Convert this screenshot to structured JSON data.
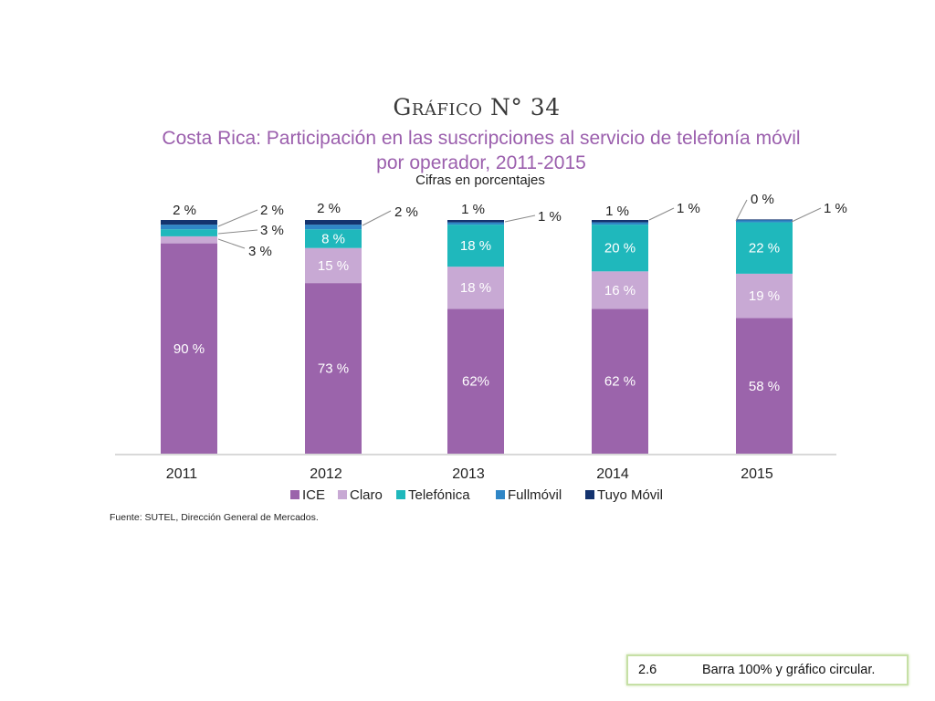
{
  "header": {
    "title": "Gráfico N° 34",
    "subtitle_line1": "Costa Rica: Participación en las suscripciones al servicio de telefonía móvil",
    "subtitle_line2": "por operador, 2011-2015",
    "units": "Cifras en porcentajes"
  },
  "source": "Fuente: SUTEL, Dirección General de Mercados.",
  "note": {
    "number": "2.6",
    "text": "Barra 100% y gráfico circular."
  },
  "colors": {
    "ICE": "#9b64ab",
    "Claro": "#c8a9d4",
    "Telefónica": "#1fb8bc",
    "Fullmóvil": "#2f86c6",
    "Tuyo Móvil": "#14336e",
    "note_border": "#c6e0a6"
  },
  "chart_data": {
    "type": "bar",
    "stacked": true,
    "categories": [
      "2011",
      "2012",
      "2013",
      "2014",
      "2015"
    ],
    "series": [
      {
        "name": "ICE",
        "values": [
          90,
          73,
          62,
          62,
          58
        ],
        "labels": [
          "90 %",
          "73 %",
          "62%",
          "62 %",
          "58 %"
        ]
      },
      {
        "name": "Claro",
        "values": [
          3,
          15,
          18,
          16,
          19
        ],
        "labels": [
          "3 %",
          "15 %",
          "18 %",
          "16 %",
          "19 %"
        ]
      },
      {
        "name": "Telefónica",
        "values": [
          3,
          8,
          18,
          20,
          22
        ],
        "labels": [
          "3 %",
          "8 %",
          "18 %",
          "20 %",
          "22 %"
        ]
      },
      {
        "name": "Fullmóvil",
        "values": [
          2,
          2,
          1,
          1,
          1
        ],
        "labels": [
          "2 %",
          "2 %",
          "1 %",
          "1 %",
          "1 %"
        ]
      },
      {
        "name": "Tuyo Móvil",
        "values": [
          2,
          2,
          1,
          1,
          0
        ],
        "labels": [
          "2 %",
          "2 %",
          "1 %",
          "1 %",
          "0 %"
        ]
      }
    ],
    "ylim": [
      0,
      100
    ],
    "grid": false,
    "legend_position": "bottom"
  }
}
